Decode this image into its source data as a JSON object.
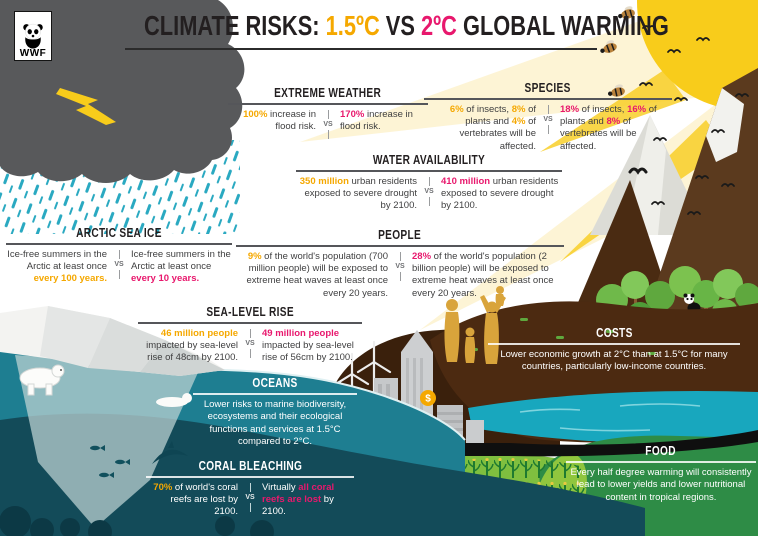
{
  "brand": {
    "name": "WWF"
  },
  "vs": "VS",
  "colors": {
    "yellow": "#F5A800",
    "pink": "#E8186D",
    "dark_text": "#404041",
    "heading": "#231F20",
    "rain_teal": "#2AA9C1",
    "ocean": "#1E7E91",
    "deep_ocean": "#134B59",
    "brown": "#4C2A11",
    "green": "#2E8C46",
    "sun": "#F8CC1B",
    "cloud": "#58595B"
  },
  "title": {
    "segments": [
      {
        "t": "CLIMATE RISKS: ",
        "c": "dark"
      },
      {
        "t": "1.5ºC",
        "c": "yellow"
      },
      {
        "t": " VS ",
        "c": "dark"
      },
      {
        "t": "2ºC",
        "c": "pink"
      },
      {
        "t": " GLOBAL WARMING",
        "c": "dark"
      }
    ]
  },
  "compare_sections": [
    {
      "id": "extreme-weather",
      "heading": "EXTREME WEATHER",
      "left": [
        {
          "t": "100%",
          "c": "yellow"
        },
        {
          "t": " increase in flood risk.",
          "c": "dark"
        }
      ],
      "right": [
        {
          "t": "170%",
          "c": "pink"
        },
        {
          "t": " increase in flood risk.",
          "c": "dark"
        }
      ]
    },
    {
      "id": "species",
      "heading": "SPECIES",
      "left": [
        {
          "t": "6%",
          "c": "yellow"
        },
        {
          "t": " of insects, ",
          "c": "dark"
        },
        {
          "t": "8%",
          "c": "yellow"
        },
        {
          "t": " of plants and ",
          "c": "dark"
        },
        {
          "t": "4%",
          "c": "yellow"
        },
        {
          "t": " of vertebrates will be affected.",
          "c": "dark"
        }
      ],
      "right": [
        {
          "t": "18%",
          "c": "pink"
        },
        {
          "t": " of insects, ",
          "c": "dark"
        },
        {
          "t": "16%",
          "c": "pink"
        },
        {
          "t": " of plants and ",
          "c": "dark"
        },
        {
          "t": "8%",
          "c": "pink"
        },
        {
          "t": " of vertebrates will be affected.",
          "c": "dark"
        }
      ]
    },
    {
      "id": "water-availability",
      "heading": "WATER AVAILABILITY",
      "left": [
        {
          "t": "350 million",
          "c": "yellow"
        },
        {
          "t": " urban residents exposed to severe drought by 2100.",
          "c": "dark"
        }
      ],
      "right": [
        {
          "t": "410 million",
          "c": "pink"
        },
        {
          "t": " urban residents exposed to severe drought by 2100.",
          "c": "dark"
        }
      ]
    },
    {
      "id": "arctic-sea-ice",
      "heading": "ARCTIC SEA ICE",
      "left": [
        {
          "t": "Ice-free summers in the Arctic at least once ",
          "c": "dark"
        },
        {
          "t": "every 100 years.",
          "c": "yellow"
        }
      ],
      "right": [
        {
          "t": "Ice-free summers in the Arctic at least once ",
          "c": "dark"
        },
        {
          "t": "every 10 years.",
          "c": "pink"
        }
      ]
    },
    {
      "id": "people",
      "heading": "PEOPLE",
      "left": [
        {
          "t": "9%",
          "c": "yellow"
        },
        {
          "t": " of the world's population (700 million people) will be exposed to extreme heat waves at least once every 20 years.",
          "c": "dark"
        }
      ],
      "right": [
        {
          "t": "28%",
          "c": "pink"
        },
        {
          "t": " of the world's population (2 billion people) will be exposed to extreme heat waves at least once every 20 years.",
          "c": "dark"
        }
      ]
    },
    {
      "id": "sea-level-rise",
      "heading": "SEA-LEVEL RISE",
      "left": [
        {
          "t": "46 million people",
          "c": "yellow"
        },
        {
          "t": " impacted by sea-level rise of 48cm by 2100.",
          "c": "dark"
        }
      ],
      "right": [
        {
          "t": "49 million people",
          "c": "pink"
        },
        {
          "t": " impacted by sea-level rise of 56cm by 2100.",
          "c": "dark"
        }
      ]
    },
    {
      "id": "coral-bleaching",
      "heading": "CORAL BLEACHING",
      "left": [
        {
          "t": "70%",
          "c": "yellow"
        },
        {
          "t": " of world's coral reefs are lost by 2100.",
          "c": "light"
        }
      ],
      "right": [
        {
          "t": "Virtually ",
          "c": "light"
        },
        {
          "t": "all coral reefs are lost",
          "c": "pink"
        },
        {
          "t": " by 2100.",
          "c": "light"
        }
      ]
    }
  ],
  "info_panels": [
    {
      "id": "oceans",
      "heading": "OCEANS",
      "text": "Lower risks to marine biodiversity, ecosystems and their ecological functions and services at 1.5°C compared to 2°C."
    },
    {
      "id": "costs",
      "heading": "COSTS",
      "text": "Lower economic growth at 2°C than at 1.5°C for many countries, particularly low-income countries."
    },
    {
      "id": "food",
      "heading": "FOOD",
      "text": "Every half degree warming will consistently lead to lower yields and lower nutritional content in tropical regions."
    }
  ],
  "scene": {
    "coin_symbol": "$"
  }
}
